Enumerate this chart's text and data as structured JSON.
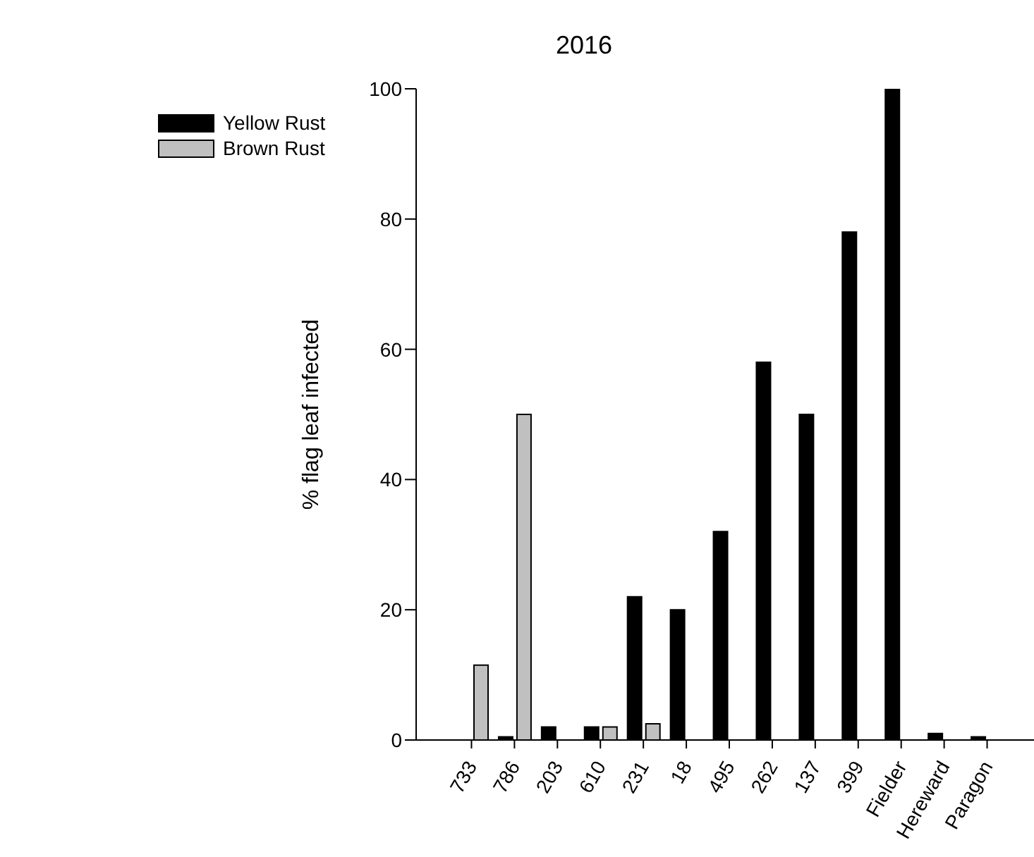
{
  "chart_data": {
    "type": "bar",
    "title": "2016",
    "ylabel": "% flag leaf infected",
    "categories": [
      "733",
      "786",
      "203",
      "610",
      "231",
      "18",
      "495",
      "262",
      "137",
      "399",
      "Fielder",
      "Hereward",
      "Paragon"
    ],
    "series": [
      {
        "name": "Yellow Rust",
        "color": "#000000",
        "values": [
          0,
          0.5,
          2,
          2,
          22,
          20,
          32,
          58,
          50,
          78,
          100,
          1,
          0.5
        ]
      },
      {
        "name": "Brown Rust",
        "color": "#c0c0c0",
        "values": [
          11.5,
          50,
          0,
          2,
          2.5,
          0,
          0,
          0,
          0,
          0,
          0,
          0,
          0
        ]
      }
    ],
    "ylim": [
      0,
      100
    ],
    "yticks": [
      0,
      20,
      40,
      60,
      80,
      100
    ],
    "grid": false,
    "legend": "top left"
  }
}
